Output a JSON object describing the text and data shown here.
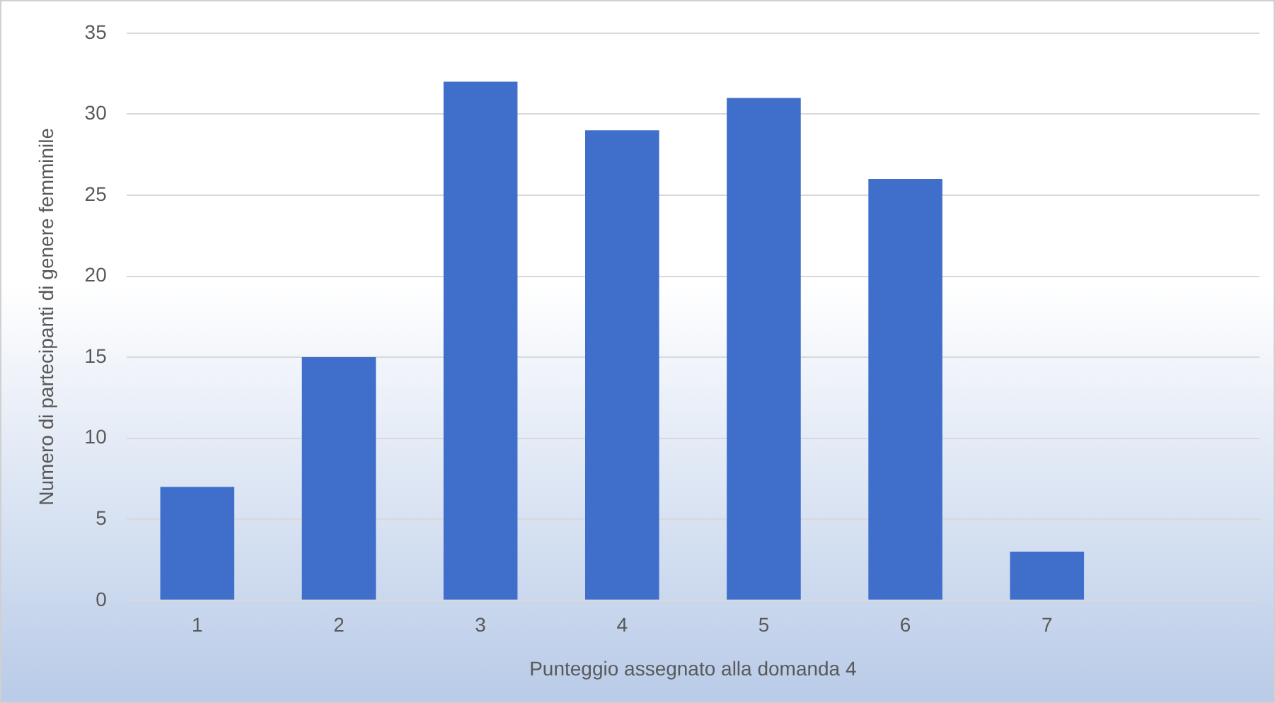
{
  "chart_data": {
    "type": "bar",
    "xlabel": "Punteggio assegnato alla domanda 4",
    "ylabel": "Numero di partecipanti di genere femminile",
    "categories": [
      "1",
      "2",
      "3",
      "4",
      "5",
      "6",
      "7",
      null
    ],
    "values": [
      7,
      15,
      32,
      29,
      31,
      26,
      3,
      null
    ],
    "color": "#3f6fcb",
    "ylim": [
      0,
      35
    ],
    "yticks": [
      0,
      5,
      10,
      15,
      20,
      25,
      30,
      35
    ],
    "grid": "y",
    "legend": false
  }
}
